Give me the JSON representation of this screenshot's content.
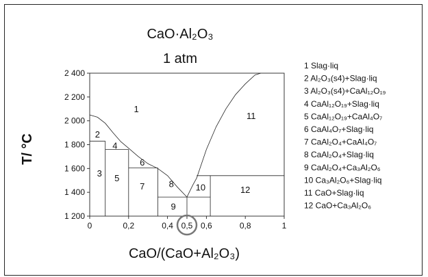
{
  "chart_data": {
    "type": "phase-diagram",
    "title_lines": [
      "CaO·Al₂O₃",
      "1 atm"
    ],
    "xlabel": "CaO/(CaO+Al₂O₃)",
    "ylabel": "T/ °C",
    "xlim": [
      0,
      1
    ],
    "ylim": [
      1200,
      2400
    ],
    "x_ticks": [
      "0",
      "0,2",
      "0,4",
      "0,5",
      "0,6",
      "0,8",
      "1"
    ],
    "x_tick_values": [
      0,
      0.2,
      0.4,
      0.5,
      0.6,
      0.8,
      1
    ],
    "y_ticks": [
      "1 200",
      "1 400",
      "1 600",
      "1 800",
      "2 000",
      "2 200",
      "2 400"
    ],
    "y_tick_values": [
      1200,
      1400,
      1600,
      1800,
      2000,
      2200,
      2400
    ],
    "highlighted_x": 0.5,
    "phase_boundaries": [
      {
        "name": "liquidus-left",
        "x": [
          0,
          0.04,
          0.08,
          0.12,
          0.16,
          0.2,
          0.25,
          0.3,
          0.35,
          0.4,
          0.45,
          0.5
        ],
        "y": [
          2050,
          2030,
          1980,
          1900,
          1825,
          1770,
          1700,
          1640,
          1600,
          1540,
          1445,
          1360
        ]
      },
      {
        "name": "liquidus-right",
        "x": [
          0.5,
          0.53,
          0.55,
          0.6,
          0.65,
          0.7,
          0.75,
          0.8,
          0.85,
          0.88
        ],
        "y": [
          1360,
          1460,
          1520,
          1760,
          1950,
          2100,
          2220,
          2310,
          2385,
          2400
        ]
      },
      {
        "name": "eutectic-1830",
        "x": [
          0,
          0.08
        ],
        "y": [
          1830,
          1830
        ]
      },
      {
        "name": "peritectic-1760",
        "x": [
          0.08,
          0.2
        ],
        "y": [
          1760,
          1760
        ]
      },
      {
        "name": "peritectic-1605",
        "x": [
          0.2,
          0.35
        ],
        "y": [
          1605,
          1605
        ]
      },
      {
        "name": "eutectic-1360",
        "x": [
          0.35,
          0.62
        ],
        "y": [
          1360,
          1360
        ]
      },
      {
        "name": "peritectic-1540",
        "x": [
          0.55,
          1
        ],
        "y": [
          1540,
          1540
        ]
      },
      {
        "name": "CaAl12O19",
        "x": [
          0.08,
          0.08
        ],
        "y": [
          1200,
          1830
        ]
      },
      {
        "name": "CaAl4O7",
        "x": [
          0.2,
          0.2
        ],
        "y": [
          1200,
          1760
        ]
      },
      {
        "name": "CaAl2O4",
        "x": [
          0.35,
          0.35
        ],
        "y": [
          1200,
          1605
        ]
      },
      {
        "name": "CaAl2O4-line",
        "x": [
          0.5,
          0.5
        ],
        "y": [
          1200,
          1360
        ]
      },
      {
        "name": "Ca3Al2O6",
        "x": [
          0.62,
          0.62
        ],
        "y": [
          1200,
          1540
        ]
      }
    ],
    "region_labels": [
      {
        "text": "1",
        "x": 0.24,
        "y": 2100
      },
      {
        "text": "2",
        "x": 0.04,
        "y": 1885
      },
      {
        "text": "3",
        "x": 0.05,
        "y": 1560
      },
      {
        "text": "4",
        "x": 0.13,
        "y": 1790
      },
      {
        "text": "5",
        "x": 0.14,
        "y": 1520
      },
      {
        "text": "6",
        "x": 0.27,
        "y": 1650
      },
      {
        "text": "7",
        "x": 0.27,
        "y": 1450
      },
      {
        "text": "8",
        "x": 0.42,
        "y": 1470
      },
      {
        "text": "9",
        "x": 0.43,
        "y": 1280
      },
      {
        "text": "10",
        "x": 0.57,
        "y": 1440
      },
      {
        "text": "11",
        "x": 0.83,
        "y": 2040
      },
      {
        "text": "12",
        "x": 0.8,
        "y": 1420
      }
    ],
    "legend": [
      "1 Slag·liq",
      "2 Al₂O₃(s4)+Slag·liq",
      "3 Al₂O₃(s4)+CaAl₁₂O₁₉",
      "4 CaAl₁₂O₁₉+Slag·liq",
      "5 CaAl₁₂O₁₉+CaAl₄O₇",
      "6 CaAl₄O₇+Slag·liq",
      "7 CaAl₂O₄+CaAl₄O₇",
      "8 CaAl₂O₄+Slag·liq",
      "9 CaAl₂O₄+Ca₃Al₂O₆",
      "10 Ca₃Al₂O₆+Slag·liq",
      "11 CaO+Slag·liq",
      "12 CaO+Ca₃Al₂O₆"
    ]
  }
}
